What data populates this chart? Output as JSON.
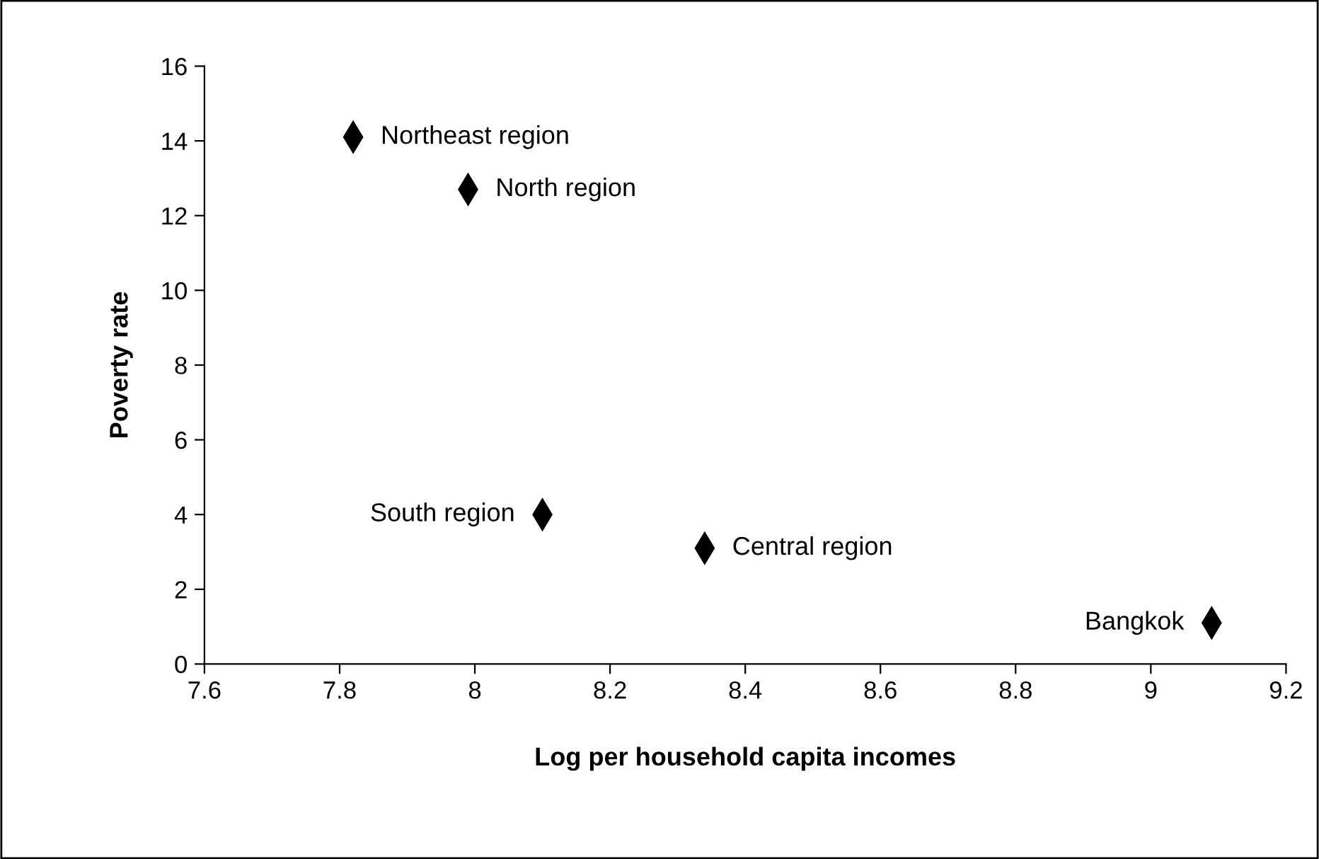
{
  "chart_data": {
    "type": "scatter",
    "xlabel": "Log per household capita incomes",
    "ylabel": "Poverty rate",
    "x": [
      7.82,
      7.99,
      8.1,
      8.34,
      9.09
    ],
    "series": [
      {
        "color": "#000000",
        "values": [
          14.1,
          12.7,
          4.0,
          3.1,
          1.1
        ]
      }
    ],
    "xlim": [
      7.6,
      9.2
    ],
    "xticks": [
      7.6,
      7.8,
      8,
      8.2,
      8.4,
      8.6,
      8.8,
      9,
      9.2
    ],
    "ylim": [
      0,
      16
    ],
    "yticks": [
      0,
      2,
      4,
      6,
      8,
      10,
      12,
      14,
      16
    ],
    "marker": "diamond",
    "grid": false,
    "annotations": [
      {
        "text": "Northeast region",
        "x": 7.82,
        "y": 14.1
      },
      {
        "text": "North region",
        "x": 7.99,
        "y": 12.7
      },
      {
        "text": "South region",
        "x": 8.1,
        "y": 4.0
      },
      {
        "text": "Central region",
        "x": 8.34,
        "y": 3.1
      },
      {
        "text": "Bangkok",
        "x": 9.09,
        "y": 1.1
      }
    ]
  }
}
